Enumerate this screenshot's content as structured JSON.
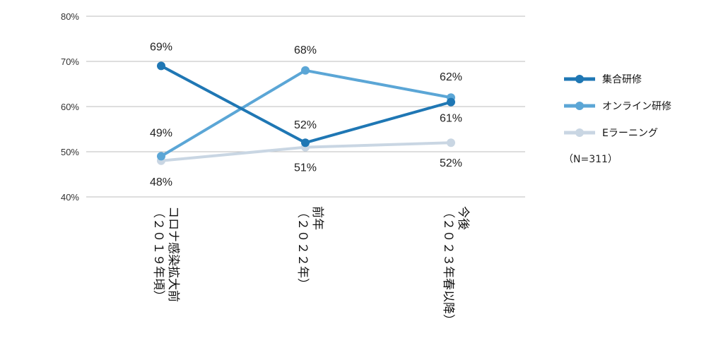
{
  "chart_data": {
    "type": "line",
    "categories": [
      "コロナ感染拡大前（２０１９年頃）",
      "前年（２０２２年）",
      "今後（２０２３年春以降）"
    ],
    "category_label_lines": [
      [
        "コロナ感染拡大前",
        "（２０１９年頃）"
      ],
      [
        "前年",
        "（２０２２年）"
      ],
      [
        "今後",
        "（２０２３年春以降）"
      ]
    ],
    "series": [
      {
        "name": "集合研修",
        "values": [
          69,
          52,
          61
        ],
        "labels": [
          "69%",
          "52%",
          "61%"
        ],
        "color": "#1f77b4"
      },
      {
        "name": "オンライン研修",
        "values": [
          49,
          68,
          62
        ],
        "labels": [
          "49%",
          "68%",
          "62%"
        ],
        "color": "#5ba6d6"
      },
      {
        "name": "Eラーニング",
        "values": [
          48,
          51,
          52
        ],
        "labels": [
          "48%",
          "51%",
          "52%"
        ],
        "color": "#c9d6e3"
      }
    ],
    "ylim": [
      40,
      80
    ],
    "yticks": [
      "40%",
      "50%",
      "60%",
      "70%",
      "80%"
    ],
    "grid": true,
    "legend_position": "right",
    "note": "（N=311）"
  }
}
